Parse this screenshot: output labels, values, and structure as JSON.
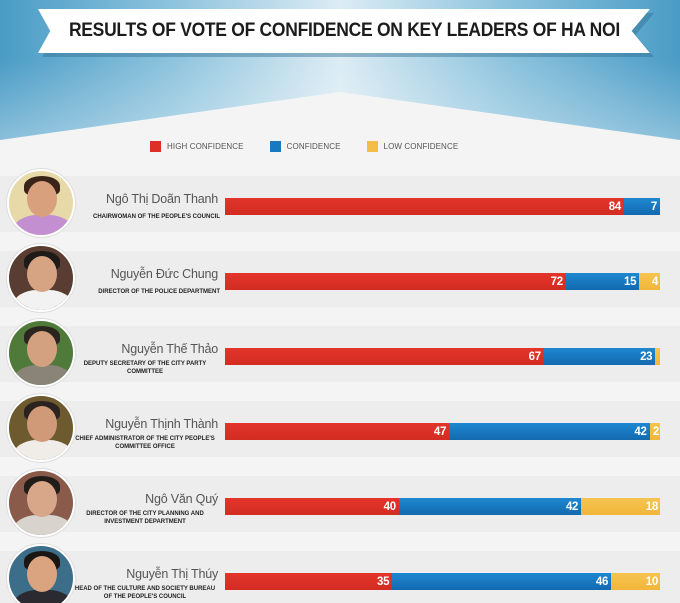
{
  "title": "RESULTS OF VOTE OF CONFIDENCE ON KEY LEADERS OF HA NOI",
  "colors": {
    "high_confidence": "#dc3026",
    "confidence": "#1878c0",
    "low_confidence": "#f4bd45",
    "header_blue": "#4a9cc6"
  },
  "legend": [
    {
      "label": "HIGH CONFIDENCE",
      "color": "#dc3026"
    },
    {
      "label": "CONFIDENCE",
      "color": "#1878c0"
    },
    {
      "label": "LOW CONFIDENCE",
      "color": "#f4bd45"
    }
  ],
  "leaders": [
    {
      "name": "Ngô Thị Doãn Thanh",
      "role": "CHAIRWOMAN OF THE PEOPLE'S COUNCIL",
      "high": "84",
      "conf": "7",
      "low": ""
    },
    {
      "name": "Nguyễn Đức Chung",
      "role": "DIRECTOR OF THE POLICE DEPARTMENT",
      "high": "72",
      "conf": "15",
      "low": "4"
    },
    {
      "name": "Nguyễn Thế Thảo",
      "role": "DEPUTY SECRETARY OF THE CITY PARTY COMMITTEE",
      "high": "67",
      "conf": "23",
      "low": ""
    },
    {
      "name": "Nguyễn Thịnh Thành",
      "role": "CHIEF ADMINISTRATOR OF THE CITY PEOPLE'S COMMITTEE OFFICE",
      "high": "47",
      "conf": "42",
      "low": "2"
    },
    {
      "name": "Ngô Văn Quý",
      "role": "DIRECTOR OF THE CITY PLANNING AND INVESTMENT DEPARTMENT",
      "high": "40",
      "conf": "42",
      "low": "18"
    },
    {
      "name": "Nguyễn Thị Thúy",
      "role": "HEAD OF THE CULTURE AND SOCIETY BUREAU OF THE PEOPLE'S COUNCIL",
      "high": "35",
      "conf": "46",
      "low": "10"
    }
  ],
  "chart_data": {
    "type": "bar",
    "orientation": "horizontal",
    "stacked": true,
    "title": "RESULTS OF VOTE OF CONFIDENCE ON KEY LEADERS OF HA NOI",
    "xlabel": "",
    "ylabel": "",
    "legend_position": "top",
    "grid": false,
    "categories": [
      "Ngô Thị Doãn Thanh",
      "Nguyễn Đức Chung",
      "Nguyễn Thế Thảo",
      "Nguyễn Thịnh Thành",
      "Ngô Văn Quý",
      "Nguyễn Thị Thúy"
    ],
    "category_subtitles": [
      "CHAIRWOMAN OF THE PEOPLE'S COUNCIL",
      "DIRECTOR OF THE POLICE DEPARTMENT",
      "DEPUTY SECRETARY OF THE CITY PARTY COMMITTEE",
      "CHIEF ADMINISTRATOR OF THE CITY PEOPLE'S COMMITTEE OFFICE",
      "DIRECTOR OF THE CITY PLANNING AND INVESTMENT DEPARTMENT",
      "HEAD OF THE CULTURE AND SOCIETY BUREAU OF THE PEOPLE'S COUNCIL"
    ],
    "series": [
      {
        "name": "HIGH CONFIDENCE",
        "color": "#dc3026",
        "values": [
          84,
          72,
          67,
          47,
          40,
          35
        ]
      },
      {
        "name": "CONFIDENCE",
        "color": "#1878c0",
        "values": [
          7,
          15,
          23,
          42,
          42,
          46
        ]
      },
      {
        "name": "LOW CONFIDENCE",
        "color": "#f4bd45",
        "values": [
          0,
          4,
          1,
          2,
          18,
          10
        ]
      }
    ]
  }
}
